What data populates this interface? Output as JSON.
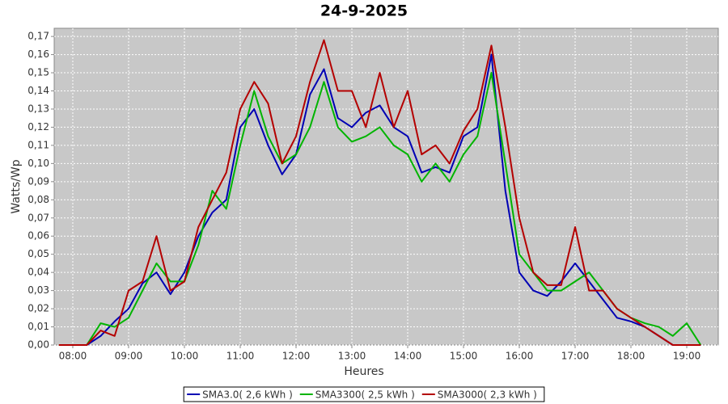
{
  "chart_data": {
    "type": "line",
    "title": "24-9-2025",
    "xlabel": "Heures",
    "ylabel": "Watts/Wp",
    "x": [
      7.75,
      8,
      8.25,
      8.5,
      8.75,
      9,
      9.25,
      9.5,
      9.75,
      10,
      10.25,
      10.5,
      10.75,
      11,
      11.25,
      11.5,
      11.75,
      12,
      12.25,
      12.5,
      12.75,
      13,
      13.25,
      13.5,
      13.75,
      14,
      14.25,
      14.5,
      14.75,
      15,
      15.25,
      15.5,
      15.75,
      16,
      16.25,
      16.5,
      16.75,
      17,
      17.25,
      17.5,
      17.75,
      18,
      18.25,
      18.5,
      18.75,
      19,
      19.25
    ],
    "series": [
      {
        "name": "SMA3.0( 2,6 kWh )",
        "color": "#0000b4",
        "values": [
          0,
          0,
          0,
          0.005,
          0.013,
          0.02,
          0.034,
          0.04,
          0.028,
          0.04,
          0.06,
          0.073,
          0.08,
          0.12,
          0.13,
          0.11,
          0.094,
          0.105,
          0.138,
          0.152,
          0.125,
          0.12,
          0.128,
          0.132,
          0.12,
          0.115,
          0.095,
          0.098,
          0.095,
          0.115,
          0.12,
          0.16,
          0.085,
          0.04,
          0.03,
          0.027,
          0.035,
          0.045,
          0.035,
          0.025,
          0.015,
          0.013,
          0.01,
          0.005,
          0,
          0,
          0
        ]
      },
      {
        "name": "SMA3300( 2,5 kWh )",
        "color": "#00b400",
        "values": [
          0,
          0,
          0,
          0.012,
          0.01,
          0.015,
          0.03,
          0.045,
          0.035,
          0.035,
          0.055,
          0.085,
          0.075,
          0.11,
          0.14,
          0.115,
          0.1,
          0.105,
          0.12,
          0.145,
          0.12,
          0.112,
          0.115,
          0.12,
          0.11,
          0.105,
          0.09,
          0.1,
          0.09,
          0.105,
          0.115,
          0.15,
          0.1,
          0.05,
          0.04,
          0.03,
          0.03,
          0.035,
          0.04,
          0.03,
          0.02,
          0.015,
          0.012,
          0.01,
          0.005,
          0.012,
          0
        ]
      },
      {
        "name": "SMA3000( 2,3 kWh )",
        "color": "#b40000",
        "values": [
          0,
          0,
          0,
          0.008,
          0.005,
          0.03,
          0.035,
          0.06,
          0.03,
          0.035,
          0.065,
          0.08,
          0.095,
          0.13,
          0.145,
          0.133,
          0.1,
          0.115,
          0.145,
          0.168,
          0.14,
          0.14,
          0.12,
          0.15,
          0.12,
          0.14,
          0.105,
          0.11,
          0.1,
          0.118,
          0.13,
          0.165,
          0.12,
          0.07,
          0.04,
          0.033,
          0.033,
          0.065,
          0.03,
          0.03,
          0.02,
          0.015,
          0.01,
          0.005,
          0,
          0,
          0
        ]
      }
    ],
    "xlim": [
      7.667,
      19.565
    ],
    "xticks": [
      {
        "value": 8,
        "label": "08:00"
      },
      {
        "value": 9,
        "label": "09:00"
      },
      {
        "value": 10,
        "label": "10:00"
      },
      {
        "value": 11,
        "label": "11:00"
      },
      {
        "value": 12,
        "label": "12:00"
      },
      {
        "value": 13,
        "label": "13:00"
      },
      {
        "value": 14,
        "label": "14:00"
      },
      {
        "value": 15,
        "label": "15:00"
      },
      {
        "value": 16,
        "label": "16:00"
      },
      {
        "value": 17,
        "label": "17:00"
      },
      {
        "value": 18,
        "label": "18:00"
      },
      {
        "value": 19,
        "label": "19:00"
      }
    ],
    "ylim": [
      0,
      0.1745
    ],
    "yticks": [
      {
        "value": 0,
        "label": "0,00"
      },
      {
        "value": 0.01,
        "label": "0,01"
      },
      {
        "value": 0.02,
        "label": "0,02"
      },
      {
        "value": 0.03,
        "label": "0,03"
      },
      {
        "value": 0.04,
        "label": "0,04"
      },
      {
        "value": 0.05,
        "label": "0,05"
      },
      {
        "value": 0.06,
        "label": "0,06"
      },
      {
        "value": 0.07,
        "label": "0,07"
      },
      {
        "value": 0.08,
        "label": "0,08"
      },
      {
        "value": 0.09,
        "label": "0,09"
      },
      {
        "value": 0.1,
        "label": "0,10"
      },
      {
        "value": 0.11,
        "label": "0,11"
      },
      {
        "value": 0.12,
        "label": "0,12"
      },
      {
        "value": 0.13,
        "label": "0,13"
      },
      {
        "value": 0.14,
        "label": "0,14"
      },
      {
        "value": 0.15,
        "label": "0,15"
      },
      {
        "value": 0.16,
        "label": "0,16"
      },
      {
        "value": 0.17,
        "label": "0,17"
      }
    ],
    "grid": true,
    "legend": "bottom"
  }
}
